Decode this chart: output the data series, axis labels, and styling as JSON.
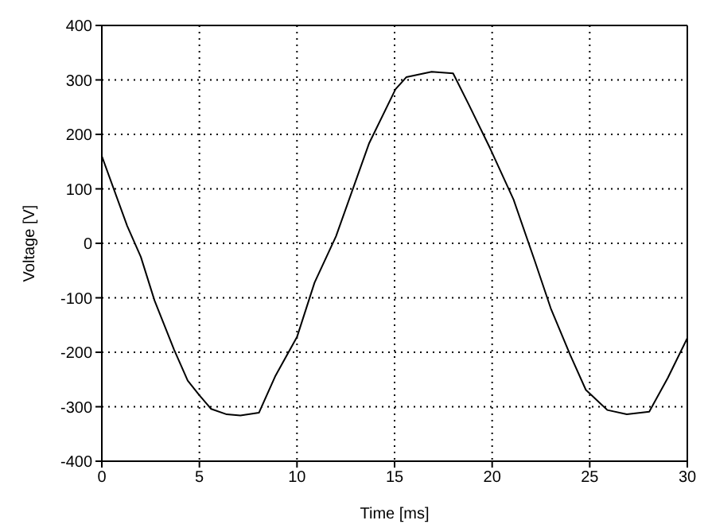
{
  "chart_data": {
    "type": "line",
    "xlabel": "Time [ms]",
    "ylabel": "Voltage [V]",
    "xlim": [
      0,
      30
    ],
    "xticks": [
      0,
      5,
      10,
      15,
      20,
      25,
      30
    ],
    "ylim": [
      -400,
      400
    ],
    "yticks": [
      -400,
      -300,
      -200,
      -100,
      0,
      100,
      200,
      300,
      400
    ],
    "grid": true,
    "marker": "none",
    "line_style": "solid",
    "series": [
      {
        "color": "#000000",
        "x": [
          0,
          1.3,
          2,
          2.7,
          3.7,
          4.4,
          5,
          5.6,
          6.4,
          7.1,
          8.05,
          8.9,
          10,
          10.9,
          12,
          13.7,
          15.05,
          15.6,
          16.9,
          18,
          18.8,
          19.9,
          21.1,
          22.2,
          23,
          24,
          24.8,
          25.9,
          26.9,
          28.05,
          29,
          30
        ],
        "values": [
          160,
          32,
          -25,
          -105,
          -195,
          -252,
          -279,
          -304,
          -314,
          -316,
          -311,
          -243,
          -172,
          -72,
          13,
          184,
          283,
          305,
          315,
          312,
          255,
          174,
          80,
          -34,
          -119,
          -205,
          -269,
          -306,
          -314,
          -309,
          -247,
          -174
        ]
      }
    ]
  }
}
